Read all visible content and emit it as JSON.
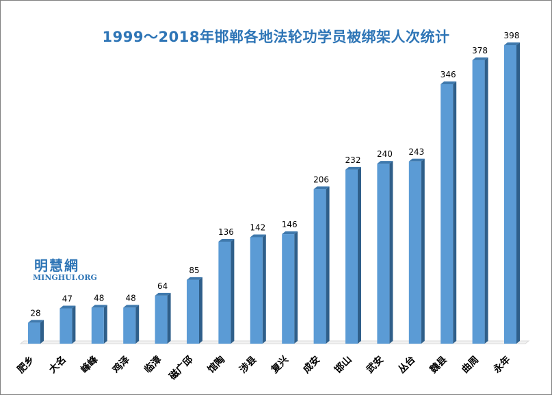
{
  "chart_data": {
    "type": "bar",
    "title": "1999～2018年邯郸各地法轮功学员被绑架人次统计",
    "categories": [
      "肥乡",
      "大名",
      "峰峰",
      "鸡泽",
      "临漳",
      "磁广邱",
      "馆陶",
      "涉县",
      "复兴",
      "成安",
      "邯山",
      "武安",
      "丛台",
      "魏县",
      "曲周",
      "永年"
    ],
    "values": [
      28,
      47,
      48,
      48,
      64,
      85,
      136,
      142,
      146,
      206,
      232,
      240,
      243,
      346,
      378,
      398
    ],
    "xlabel": "",
    "ylabel": "",
    "ylim": [
      0,
      398
    ],
    "grid": false,
    "legend": "none",
    "colors": {
      "bar_front": "#5b9bd5",
      "bar_side": "#2f5f8a",
      "bar_top": "#3f79ad",
      "title": "#2e75b6"
    }
  },
  "watermark": {
    "chinese": "明慧網",
    "english": "MINGHUI.ORG"
  }
}
